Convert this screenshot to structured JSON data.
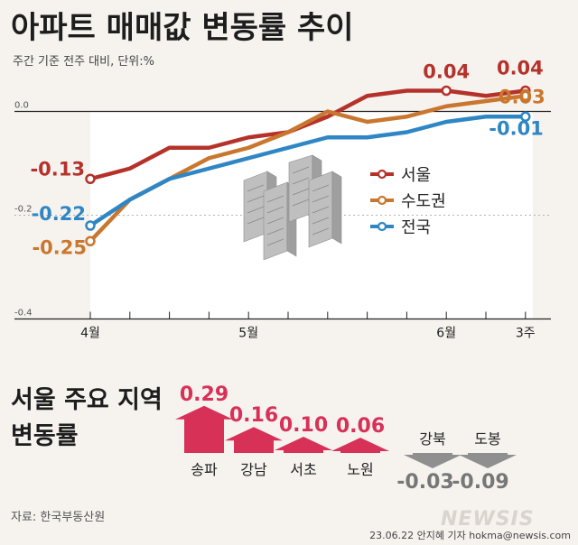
{
  "title": "아파트 매매값 변동률 추이",
  "subtitle": "주간 기준 전주 대비, 단위:%",
  "colors": {
    "seoul": "#b5322b",
    "sudogwon": "#c9772f",
    "national": "#2f86c4",
    "up_bar": "#d83158",
    "down_bar": "#8f8f8f",
    "background": "#f6f3ef"
  },
  "chart_data": [
    {
      "type": "line",
      "title": "아파트 매매값 변동률 추이",
      "ylabel": "단위:%",
      "ylim": [
        -0.4,
        0.05
      ],
      "yticks": [
        {
          "value": 0.0,
          "label": "0.0"
        },
        {
          "value": -0.2,
          "label": "-0.2"
        },
        {
          "value": -0.4,
          "label": "-0.4"
        }
      ],
      "x_labels": [
        {
          "index": 0,
          "label": "4월"
        },
        {
          "index": 4,
          "label": "5월"
        },
        {
          "index": 9,
          "label": "6월"
        },
        {
          "index": 11,
          "label": "3주"
        }
      ],
      "series": [
        {
          "name": "서울",
          "color_key": "seoul",
          "values": [
            -0.13,
            -0.11,
            -0.07,
            -0.07,
            -0.05,
            -0.04,
            -0.01,
            0.03,
            0.04,
            0.04,
            0.03,
            0.04
          ],
          "start_label": "-0.13",
          "end_label": "0.04",
          "peak_label": "0.04",
          "peak_index": 9
        },
        {
          "name": "수도권",
          "color_key": "sudogwon",
          "values": [
            -0.25,
            -0.17,
            -0.13,
            -0.09,
            -0.07,
            -0.04,
            0.0,
            -0.02,
            -0.01,
            0.01,
            0.02,
            0.03
          ],
          "start_label": "-0.25",
          "end_label": "0.03"
        },
        {
          "name": "전국",
          "color_key": "national",
          "values": [
            -0.22,
            -0.17,
            -0.13,
            -0.11,
            -0.09,
            -0.07,
            -0.05,
            -0.05,
            -0.04,
            -0.02,
            -0.01,
            -0.01
          ],
          "start_label": "-0.22",
          "end_label": "-0.01"
        }
      ]
    },
    {
      "type": "bar",
      "title": "서울 주요 지역 변동률",
      "categories": [
        "송파",
        "강남",
        "서초",
        "노원",
        "강북",
        "도봉"
      ],
      "values": [
        0.29,
        0.16,
        0.1,
        0.06,
        -0.03,
        -0.09
      ],
      "value_labels": [
        "0.29",
        "0.16",
        "0.10",
        "0.06",
        "-0.03",
        "-0.09"
      ]
    }
  ],
  "section_title_line1": "서울 주요 지역",
  "section_title_line2": "변동률",
  "source": "자료: 한국부동산원",
  "credit": "23.06.22 안지혜 기자 hokma@newsis.com",
  "watermark": "NEWSIS"
}
